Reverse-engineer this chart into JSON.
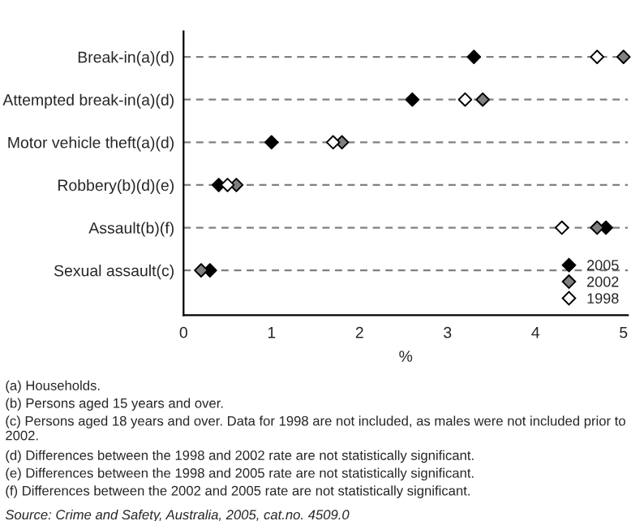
{
  "chart_data": {
    "type": "scatter",
    "orientation": "horizontal",
    "xlabel": "%",
    "categories": [
      "Break-in(a)(d)",
      "Attempted break-in(a)(d)",
      "Motor vehicle theft(a)(d)",
      "Robbery(b)(d)(e)",
      "Assault(b)(f)",
      "Sexual assault(c)"
    ],
    "series": [
      {
        "name": "2005",
        "color": "#000000",
        "values": [
          3.3,
          2.6,
          1.0,
          0.4,
          4.8,
          0.3
        ]
      },
      {
        "name": "2002",
        "color": "#808080",
        "values": [
          5.0,
          3.4,
          1.8,
          0.6,
          4.7,
          0.2
        ]
      },
      {
        "name": "1998",
        "color": "#ffffff",
        "values": [
          4.7,
          3.2,
          1.7,
          0.5,
          4.3,
          null
        ]
      }
    ],
    "xlim": [
      0,
      5.05
    ],
    "xticks": [
      0,
      1,
      2,
      3,
      4,
      5
    ],
    "grid": "y",
    "line_style": "dashed",
    "marker": "diamond",
    "legend": "bottom right",
    "annotations": [
      "(a) Households.",
      "(b) Persons aged 15 years and over.",
      "(c) Persons aged 18 years and over. Data for 1998 are not included, as males were not included prior to 2002.",
      "(d) Differences between the 1998 and 2002 rate are not statistically significant.",
      "(e) Differences between the 1998 and 2005 rate are not statistically significant.",
      "(f) Differences between the 2002 and 2005 rate are not statistically significant.",
      "Source: Crime and Safety, Australia, 2005, cat.no. 4509.0"
    ]
  }
}
